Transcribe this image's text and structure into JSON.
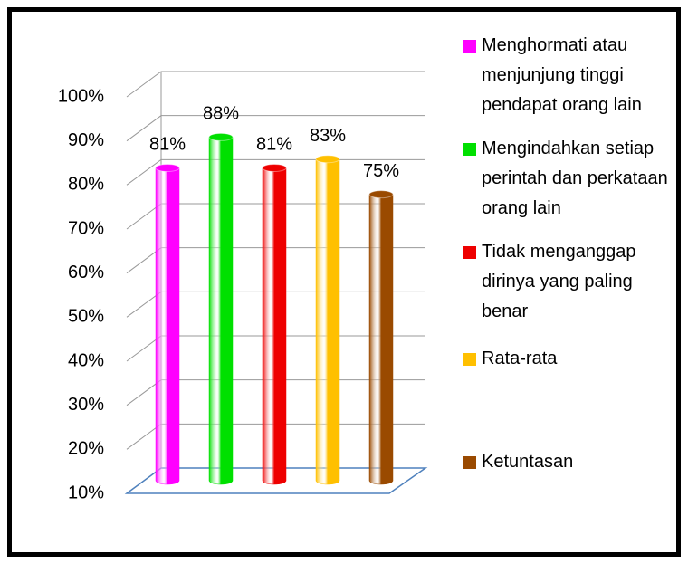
{
  "chart_data": {
    "type": "bar",
    "series": [
      {
        "name": "Menghormati atau menjunjung tinggi pendapat orang lain",
        "color": "#ff00ff",
        "values": [
          81
        ],
        "value_labels": [
          "81%"
        ]
      },
      {
        "name": "Mengindahkan setiap perintah dan perkataan orang lain",
        "color": "#00e000",
        "values": [
          88
        ],
        "value_labels": [
          "88%"
        ]
      },
      {
        "name": "Tidak menganggap dirinya yang paling benar",
        "color": "#ee0000",
        "values": [
          81
        ],
        "value_labels": [
          "81%"
        ]
      },
      {
        "name": "Rata-rata",
        "color": "#ffc000",
        "values": [
          83
        ],
        "value_labels": [
          "83%"
        ]
      },
      {
        "name": "Ketuntasan",
        "color": "#9a4a00",
        "values": [
          75
        ],
        "value_labels": [
          "75%"
        ]
      }
    ],
    "ylim": [
      10,
      100
    ],
    "yticks": [
      {
        "value": 10,
        "label": "10%"
      },
      {
        "value": 20,
        "label": "20%"
      },
      {
        "value": 30,
        "label": "30%"
      },
      {
        "value": 40,
        "label": "40%"
      },
      {
        "value": 50,
        "label": "50%"
      },
      {
        "value": 60,
        "label": "60%"
      },
      {
        "value": 70,
        "label": "70%"
      },
      {
        "value": 80,
        "label": "80%"
      },
      {
        "value": 90,
        "label": "90%"
      },
      {
        "value": 100,
        "label": "100%"
      }
    ],
    "grid": true
  }
}
